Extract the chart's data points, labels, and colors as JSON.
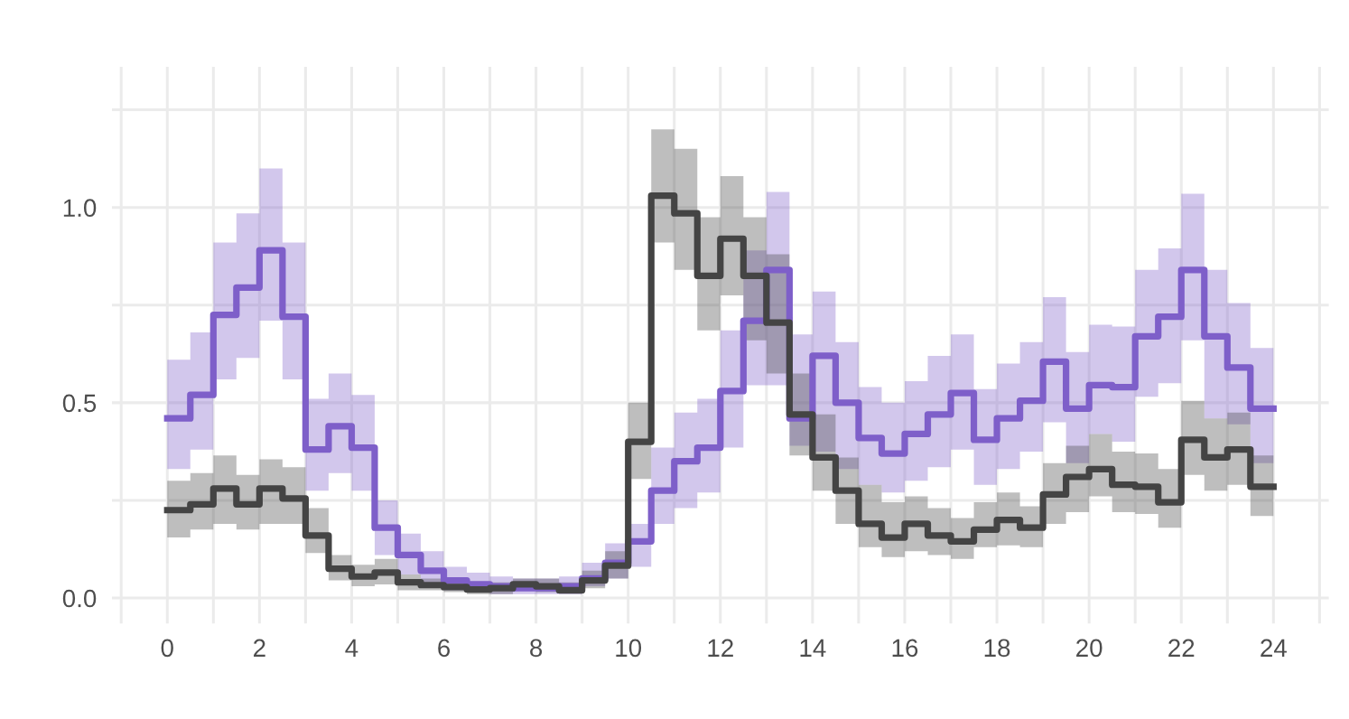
{
  "chart_data": {
    "type": "step",
    "x": [
      0,
      0.5,
      1,
      1.5,
      2,
      2.5,
      3,
      3.5,
      4,
      4.5,
      5,
      5.5,
      6,
      6.5,
      7,
      7.5,
      8,
      8.5,
      9,
      9.5,
      10,
      10.5,
      11,
      11.5,
      12,
      12.5,
      13,
      13.5,
      14,
      14.5,
      15,
      15.5,
      16,
      16.5,
      17,
      17.5,
      18,
      18.5,
      19,
      19.5,
      20,
      20.5,
      21,
      21.5,
      22,
      22.5,
      23,
      23.5,
      24
    ],
    "series": [
      {
        "color": "#7e5fc9",
        "values": [
          0.46,
          0.52,
          0.725,
          0.795,
          0.89,
          0.72,
          0.38,
          0.44,
          0.385,
          0.18,
          0.11,
          0.07,
          0.045,
          0.035,
          0.03,
          0.025,
          0.025,
          0.03,
          0.05,
          0.09,
          0.145,
          0.275,
          0.35,
          0.385,
          0.53,
          0.71,
          0.84,
          0.46,
          0.62,
          0.5,
          0.41,
          0.37,
          0.42,
          0.47,
          0.525,
          0.405,
          0.46,
          0.505,
          0.605,
          0.485,
          0.545,
          0.54,
          0.67,
          0.72,
          0.84,
          0.67,
          0.59,
          0.485,
          0.485
        ],
        "lower": [
          0.33,
          0.38,
          0.56,
          0.615,
          0.71,
          0.56,
          0.275,
          0.32,
          0.275,
          0.11,
          0.06,
          0.035,
          0.02,
          0.015,
          0.01,
          0.01,
          0.01,
          0.01,
          0.03,
          0.05,
          0.08,
          0.19,
          0.23,
          0.27,
          0.385,
          0.545,
          0.545,
          0.39,
          0.375,
          0.33,
          0.29,
          0.27,
          0.3,
          0.335,
          0.38,
          0.29,
          0.33,
          0.375,
          0.45,
          0.345,
          0.42,
          0.4,
          0.515,
          0.55,
          0.66,
          0.46,
          0.445,
          0.345,
          0.345
        ],
        "upper": [
          0.61,
          0.68,
          0.91,
          0.985,
          1.1,
          0.91,
          0.51,
          0.575,
          0.52,
          0.25,
          0.165,
          0.12,
          0.08,
          0.065,
          0.055,
          0.05,
          0.05,
          0.055,
          0.09,
          0.14,
          0.19,
          0.385,
          0.475,
          0.51,
          0.685,
          0.89,
          1.04,
          0.675,
          0.785,
          0.655,
          0.54,
          0.5,
          0.555,
          0.62,
          0.675,
          0.535,
          0.6,
          0.655,
          0.77,
          0.63,
          0.7,
          0.695,
          0.84,
          0.895,
          1.035,
          0.84,
          0.755,
          0.64,
          0.64
        ]
      },
      {
        "color": "#444444",
        "values": [
          0.225,
          0.24,
          0.28,
          0.24,
          0.28,
          0.255,
          0.16,
          0.075,
          0.055,
          0.065,
          0.04,
          0.033,
          0.028,
          0.022,
          0.025,
          0.035,
          0.03,
          0.02,
          0.045,
          0.083,
          0.4,
          1.03,
          0.985,
          0.825,
          0.92,
          0.825,
          0.705,
          0.47,
          0.36,
          0.275,
          0.19,
          0.155,
          0.19,
          0.16,
          0.145,
          0.175,
          0.2,
          0.18,
          0.265,
          0.31,
          0.33,
          0.29,
          0.285,
          0.245,
          0.405,
          0.36,
          0.38,
          0.285,
          0.285
        ],
        "lower": [
          0.155,
          0.175,
          0.19,
          0.175,
          0.19,
          0.19,
          0.115,
          0.045,
          0.03,
          0.035,
          0.02,
          0.02,
          0.015,
          0.01,
          0.01,
          0.02,
          0.015,
          0.01,
          0.025,
          0.05,
          0.305,
          0.91,
          0.84,
          0.685,
          0.775,
          0.66,
          0.575,
          0.365,
          0.275,
          0.19,
          0.13,
          0.105,
          0.12,
          0.11,
          0.1,
          0.13,
          0.135,
          0.13,
          0.19,
          0.22,
          0.26,
          0.22,
          0.215,
          0.18,
          0.315,
          0.275,
          0.29,
          0.21,
          0.21
        ],
        "upper": [
          0.3,
          0.32,
          0.365,
          0.315,
          0.355,
          0.335,
          0.23,
          0.11,
          0.085,
          0.1,
          0.06,
          0.05,
          0.045,
          0.04,
          0.04,
          0.05,
          0.05,
          0.04,
          0.07,
          0.12,
          0.5,
          1.2,
          1.15,
          0.975,
          1.08,
          0.975,
          0.88,
          0.575,
          0.47,
          0.36,
          0.29,
          0.245,
          0.26,
          0.23,
          0.205,
          0.245,
          0.27,
          0.235,
          0.345,
          0.39,
          0.42,
          0.375,
          0.37,
          0.33,
          0.505,
          0.46,
          0.475,
          0.365,
          0.365
        ]
      }
    ],
    "xlim": [
      -1.2,
      25.2
    ],
    "xticks": [
      {
        "value": -1,
        "label": null
      },
      0,
      {
        "value": 1,
        "label": null
      },
      2,
      {
        "value": 3,
        "label": null
      },
      4,
      {
        "value": 5,
        "label": null
      },
      6,
      {
        "value": 7,
        "label": null
      },
      8,
      {
        "value": 9,
        "label": null
      },
      10,
      {
        "value": 11,
        "label": null
      },
      12,
      {
        "value": 13,
        "label": null
      },
      14,
      {
        "value": 15,
        "label": null
      },
      16,
      {
        "value": 17,
        "label": null
      },
      18,
      {
        "value": 19,
        "label": null
      },
      20,
      {
        "value": 21,
        "label": null
      },
      22,
      {
        "value": 23,
        "label": null
      },
      24,
      {
        "value": 25,
        "label": null
      }
    ],
    "ylim": [
      -0.065,
      1.36
    ],
    "yticks": [
      {
        "value": 0,
        "label": "0.0"
      },
      {
        "value": 0.25,
        "label": null
      },
      {
        "value": 0.5,
        "label": "0.5"
      },
      {
        "value": 0.75,
        "label": null
      },
      {
        "value": 1,
        "label": "1.0"
      },
      {
        "value": 1.25,
        "label": null
      }
    ],
    "grid": true,
    "line_style": "solid"
  }
}
